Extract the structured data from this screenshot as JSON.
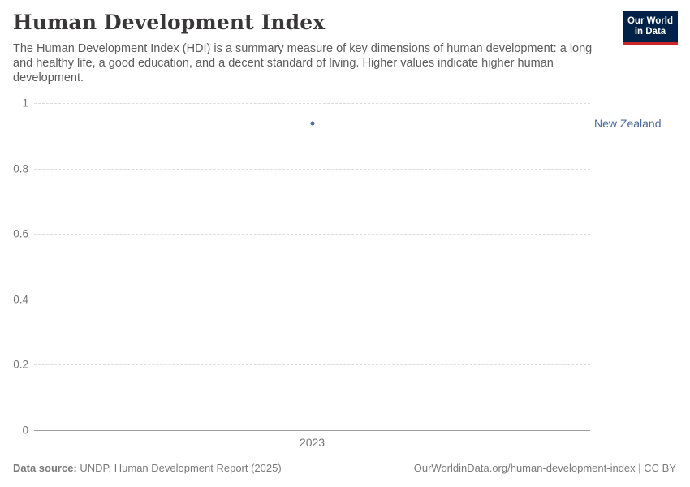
{
  "header": {
    "title": "Human Development Index",
    "subtitle": "The Human Development Index (HDI) is a summary measure of key dimensions of human development: a long and healthy life, a good education, and a decent standard of living. Higher values indicate higher human development."
  },
  "logo": {
    "line1": "Our World",
    "line2": "in Data",
    "bg_color": "#002147",
    "accent_color": "#cc2428"
  },
  "chart_data": {
    "type": "scatter",
    "title": "Human Development Index",
    "x": [
      2023
    ],
    "xtick_labels": [
      "2023"
    ],
    "series": [
      {
        "name": "New Zealand",
        "values": [
          0.938
        ],
        "color": "#4C6A9C"
      }
    ],
    "xlabel": "",
    "ylabel": "",
    "ylim": [
      0,
      1
    ],
    "yticks": [
      0,
      0.2,
      0.4,
      0.6,
      0.8,
      1
    ],
    "ytick_labels": [
      "0",
      "0.2",
      "0.4",
      "0.6",
      "0.8",
      "1"
    ],
    "grid": "horizontal-dashed",
    "legend_position": "right-of-plot"
  },
  "footer": {
    "source_label": "Data source:",
    "source_text": " UNDP, Human Development Report (2025)",
    "attribution_url": "OurWorldinData.org/human-development-index",
    "separator": " | ",
    "license": "CC BY"
  }
}
